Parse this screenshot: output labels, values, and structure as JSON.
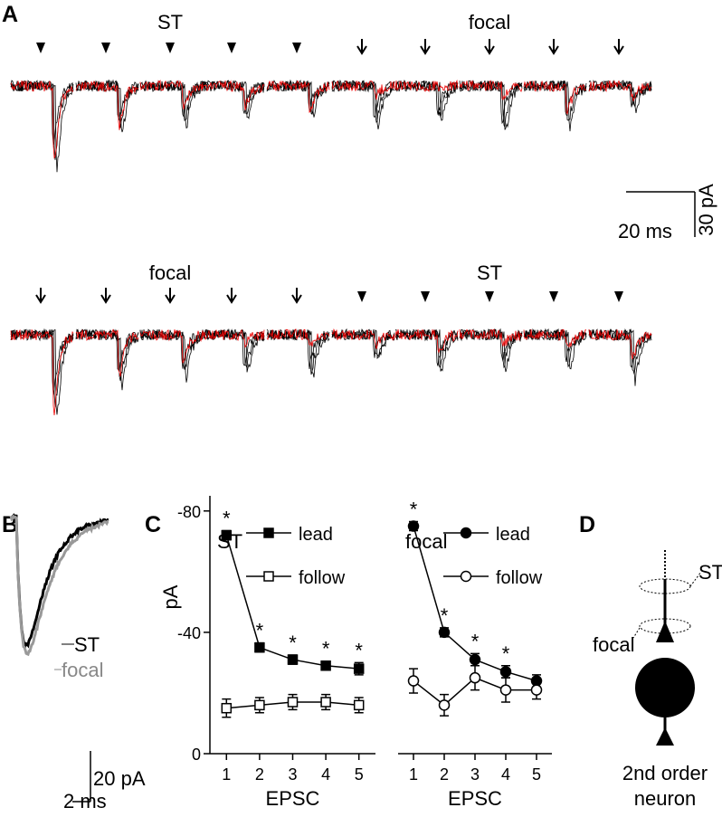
{
  "panels": {
    "A": {
      "label": "A",
      "top_labels": [
        "ST",
        "focal"
      ],
      "bottom_labels": [
        "focal",
        "ST"
      ],
      "scale_time": "20 ms",
      "scale_amp": "30 pA"
    },
    "B": {
      "label": "B",
      "trace_labels": [
        "ST",
        "focal"
      ],
      "scale_amp": "20 pA",
      "scale_time": "2 ms"
    },
    "C": {
      "label": "C"
    },
    "D": {
      "label": "D",
      "site_labels": [
        "ST",
        "focal"
      ],
      "neuron_label": [
        "2nd order",
        "neuron"
      ]
    }
  },
  "chart_data": [
    {
      "type": "line",
      "title": "ST",
      "ylabel": "pA",
      "xlabel": "EPSC",
      "x": [
        1,
        2,
        3,
        4,
        5
      ],
      "xticks": [
        1,
        2,
        3,
        4,
        5
      ],
      "xlim": [
        0.5,
        5.5
      ],
      "ylim": [
        0,
        -85
      ],
      "yticks": [
        0,
        -40,
        -80
      ],
      "series": [
        {
          "name": "lead",
          "color": "#000000",
          "marker": "square-filled",
          "values": [
            -72,
            -35,
            -31,
            -29,
            -28
          ],
          "errors": [
            1.5,
            1.5,
            1.5,
            1.5,
            2
          ]
        },
        {
          "name": "follow",
          "color": "#000000",
          "marker": "square-open",
          "values": [
            -15,
            -16,
            -17,
            -17,
            -16
          ],
          "errors": [
            3,
            2.5,
            2.5,
            2.5,
            2.5
          ]
        }
      ],
      "stars": [
        "*",
        "*",
        "*",
        "*",
        "*"
      ]
    },
    {
      "type": "line",
      "title": "focal",
      "xlabel": "EPSC",
      "x": [
        1,
        2,
        3,
        4,
        5
      ],
      "xticks": [
        1,
        2,
        3,
        4,
        5
      ],
      "xlim": [
        0.5,
        5.5
      ],
      "ylim": [
        0,
        -85
      ],
      "series": [
        {
          "name": "lead",
          "color": "#000000",
          "marker": "circle-filled",
          "values": [
            -75,
            -40,
            -31,
            -27,
            -24
          ],
          "errors": [
            1.5,
            1.5,
            2,
            2,
            2
          ]
        },
        {
          "name": "follow",
          "color": "#000000",
          "marker": "circle-open",
          "values": [
            -24,
            -16,
            -25,
            -21,
            -21
          ],
          "errors": [
            4,
            3.5,
            4,
            4,
            3
          ]
        }
      ],
      "stars": [
        "*",
        "*",
        "*",
        "*",
        null
      ]
    }
  ]
}
